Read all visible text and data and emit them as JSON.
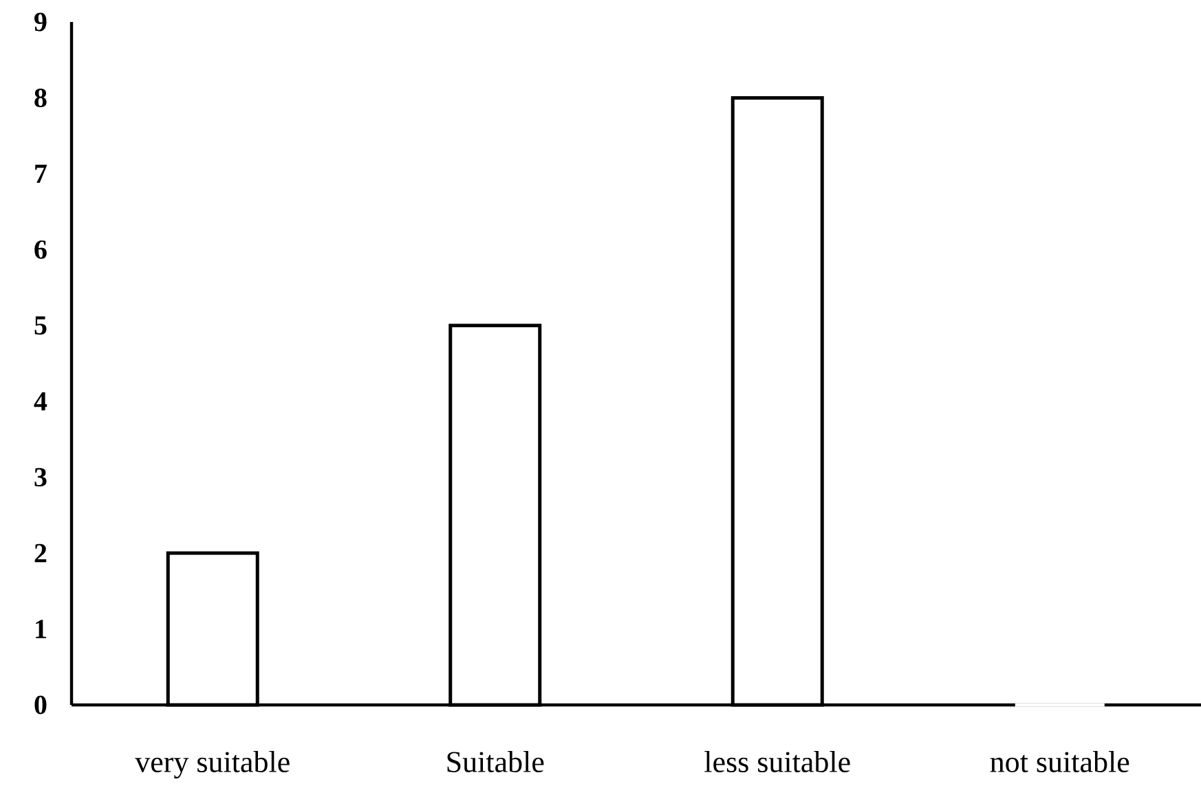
{
  "chart_data": {
    "type": "bar",
    "categories": [
      "very suitable",
      "Suitable",
      "less suitable",
      "not suitable"
    ],
    "values": [
      2,
      5,
      8,
      0
    ],
    "color": "#ffffff",
    "ylim": [
      0,
      9
    ],
    "yticks": [
      0,
      1,
      2,
      3,
      4,
      5,
      6,
      7,
      8,
      9
    ]
  }
}
